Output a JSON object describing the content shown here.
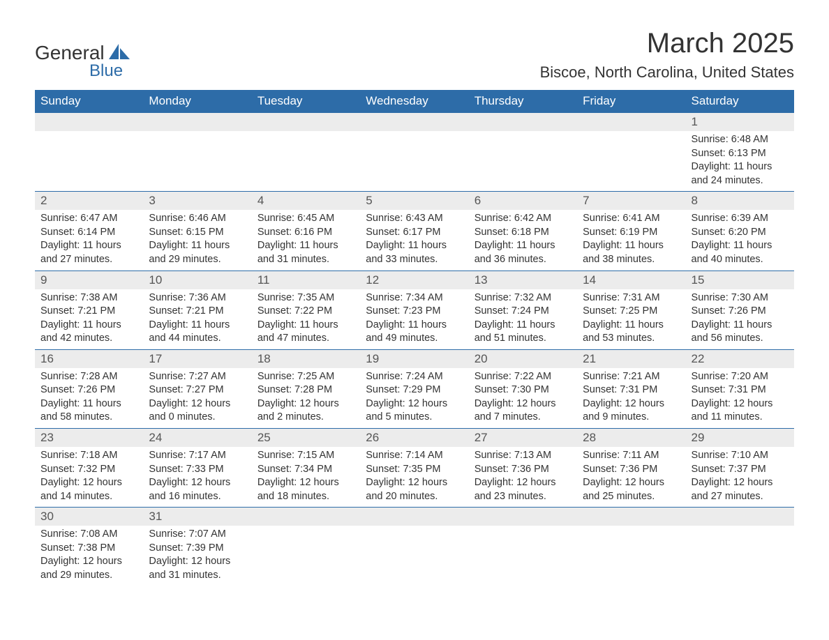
{
  "logo": {
    "text1": "General",
    "text2": "Blue",
    "accent_color": "#2d6ca8"
  },
  "title": "March 2025",
  "location": "Biscoe, North Carolina, United States",
  "header_bg": "#2d6ca8",
  "daynum_bg": "#ececec",
  "columns": [
    "Sunday",
    "Monday",
    "Tuesday",
    "Wednesday",
    "Thursday",
    "Friday",
    "Saturday"
  ],
  "weeks": [
    [
      null,
      null,
      null,
      null,
      null,
      null,
      {
        "n": "1",
        "sunrise": "6:48 AM",
        "sunset": "6:13 PM",
        "dl1": "11 hours",
        "dl2": "and 24 minutes."
      }
    ],
    [
      {
        "n": "2",
        "sunrise": "6:47 AM",
        "sunset": "6:14 PM",
        "dl1": "11 hours",
        "dl2": "and 27 minutes."
      },
      {
        "n": "3",
        "sunrise": "6:46 AM",
        "sunset": "6:15 PM",
        "dl1": "11 hours",
        "dl2": "and 29 minutes."
      },
      {
        "n": "4",
        "sunrise": "6:45 AM",
        "sunset": "6:16 PM",
        "dl1": "11 hours",
        "dl2": "and 31 minutes."
      },
      {
        "n": "5",
        "sunrise": "6:43 AM",
        "sunset": "6:17 PM",
        "dl1": "11 hours",
        "dl2": "and 33 minutes."
      },
      {
        "n": "6",
        "sunrise": "6:42 AM",
        "sunset": "6:18 PM",
        "dl1": "11 hours",
        "dl2": "and 36 minutes."
      },
      {
        "n": "7",
        "sunrise": "6:41 AM",
        "sunset": "6:19 PM",
        "dl1": "11 hours",
        "dl2": "and 38 minutes."
      },
      {
        "n": "8",
        "sunrise": "6:39 AM",
        "sunset": "6:20 PM",
        "dl1": "11 hours",
        "dl2": "and 40 minutes."
      }
    ],
    [
      {
        "n": "9",
        "sunrise": "7:38 AM",
        "sunset": "7:21 PM",
        "dl1": "11 hours",
        "dl2": "and 42 minutes."
      },
      {
        "n": "10",
        "sunrise": "7:36 AM",
        "sunset": "7:21 PM",
        "dl1": "11 hours",
        "dl2": "and 44 minutes."
      },
      {
        "n": "11",
        "sunrise": "7:35 AM",
        "sunset": "7:22 PM",
        "dl1": "11 hours",
        "dl2": "and 47 minutes."
      },
      {
        "n": "12",
        "sunrise": "7:34 AM",
        "sunset": "7:23 PM",
        "dl1": "11 hours",
        "dl2": "and 49 minutes."
      },
      {
        "n": "13",
        "sunrise": "7:32 AM",
        "sunset": "7:24 PM",
        "dl1": "11 hours",
        "dl2": "and 51 minutes."
      },
      {
        "n": "14",
        "sunrise": "7:31 AM",
        "sunset": "7:25 PM",
        "dl1": "11 hours",
        "dl2": "and 53 minutes."
      },
      {
        "n": "15",
        "sunrise": "7:30 AM",
        "sunset": "7:26 PM",
        "dl1": "11 hours",
        "dl2": "and 56 minutes."
      }
    ],
    [
      {
        "n": "16",
        "sunrise": "7:28 AM",
        "sunset": "7:26 PM",
        "dl1": "11 hours",
        "dl2": "and 58 minutes."
      },
      {
        "n": "17",
        "sunrise": "7:27 AM",
        "sunset": "7:27 PM",
        "dl1": "12 hours",
        "dl2": "and 0 minutes."
      },
      {
        "n": "18",
        "sunrise": "7:25 AM",
        "sunset": "7:28 PM",
        "dl1": "12 hours",
        "dl2": "and 2 minutes."
      },
      {
        "n": "19",
        "sunrise": "7:24 AM",
        "sunset": "7:29 PM",
        "dl1": "12 hours",
        "dl2": "and 5 minutes."
      },
      {
        "n": "20",
        "sunrise": "7:22 AM",
        "sunset": "7:30 PM",
        "dl1": "12 hours",
        "dl2": "and 7 minutes."
      },
      {
        "n": "21",
        "sunrise": "7:21 AM",
        "sunset": "7:31 PM",
        "dl1": "12 hours",
        "dl2": "and 9 minutes."
      },
      {
        "n": "22",
        "sunrise": "7:20 AM",
        "sunset": "7:31 PM",
        "dl1": "12 hours",
        "dl2": "and 11 minutes."
      }
    ],
    [
      {
        "n": "23",
        "sunrise": "7:18 AM",
        "sunset": "7:32 PM",
        "dl1": "12 hours",
        "dl2": "and 14 minutes."
      },
      {
        "n": "24",
        "sunrise": "7:17 AM",
        "sunset": "7:33 PM",
        "dl1": "12 hours",
        "dl2": "and 16 minutes."
      },
      {
        "n": "25",
        "sunrise": "7:15 AM",
        "sunset": "7:34 PM",
        "dl1": "12 hours",
        "dl2": "and 18 minutes."
      },
      {
        "n": "26",
        "sunrise": "7:14 AM",
        "sunset": "7:35 PM",
        "dl1": "12 hours",
        "dl2": "and 20 minutes."
      },
      {
        "n": "27",
        "sunrise": "7:13 AM",
        "sunset": "7:36 PM",
        "dl1": "12 hours",
        "dl2": "and 23 minutes."
      },
      {
        "n": "28",
        "sunrise": "7:11 AM",
        "sunset": "7:36 PM",
        "dl1": "12 hours",
        "dl2": "and 25 minutes."
      },
      {
        "n": "29",
        "sunrise": "7:10 AM",
        "sunset": "7:37 PM",
        "dl1": "12 hours",
        "dl2": "and 27 minutes."
      }
    ],
    [
      {
        "n": "30",
        "sunrise": "7:08 AM",
        "sunset": "7:38 PM",
        "dl1": "12 hours",
        "dl2": "and 29 minutes."
      },
      {
        "n": "31",
        "sunrise": "7:07 AM",
        "sunset": "7:39 PM",
        "dl1": "12 hours",
        "dl2": "and 31 minutes."
      },
      null,
      null,
      null,
      null,
      null
    ]
  ],
  "labels": {
    "sunrise": "Sunrise:",
    "sunset": "Sunset:",
    "daylight": "Daylight:"
  }
}
